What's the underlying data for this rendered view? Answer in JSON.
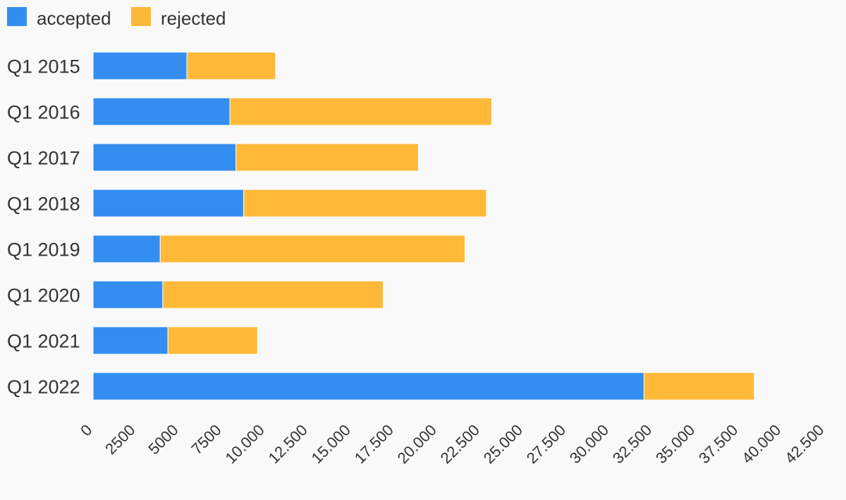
{
  "chart_data": {
    "type": "bar",
    "orientation": "horizontal",
    "stacked": true,
    "categories": [
      "Q1 2015",
      "Q1 2016",
      "Q1 2017",
      "Q1 2018",
      "Q1 2019",
      "Q1 2020",
      "Q1 2021",
      "Q1 2022"
    ],
    "series": [
      {
        "name": "accepted",
        "color": "#348ef0",
        "values": [
          5450,
          7950,
          8300,
          8750,
          3900,
          4050,
          4350,
          32000
        ]
      },
      {
        "name": "rejected",
        "color": "#ffb938",
        "values": [
          5150,
          15200,
          10600,
          14100,
          17700,
          12800,
          5200,
          6400
        ]
      }
    ],
    "xlim": [
      0,
      42500
    ],
    "x_ticks": [
      "0",
      "2500",
      "5000",
      "7500",
      "10.000",
      "12.500",
      "15.000",
      "17.500",
      "20.000",
      "22.500",
      "25.000",
      "27.500",
      "30.000",
      "32.500",
      "35.000",
      "37.500",
      "40.000",
      "42.500"
    ],
    "x_tick_values": [
      0,
      2500,
      5000,
      7500,
      10000,
      12500,
      15000,
      17500,
      20000,
      22500,
      25000,
      27500,
      30000,
      32500,
      35000,
      37500,
      40000,
      42500
    ],
    "legend_position": "top-left",
    "grid": false,
    "title": "",
    "xlabel": "",
    "ylabel": ""
  }
}
